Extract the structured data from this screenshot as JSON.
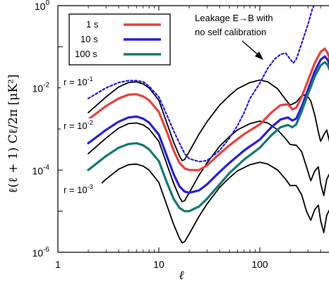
{
  "chart_data": {
    "type": "line",
    "title": "",
    "xlabel": "ℓ",
    "ylabel": "ℓ(ℓ + 1) Cℓ/2π [μK²]",
    "xscale": "log",
    "yscale": "log",
    "xlim": [
      1,
      500
    ],
    "ylim": [
      1e-06,
      1
    ],
    "x_ticks": [
      {
        "value": 1,
        "label": "1"
      },
      {
        "value": 10,
        "label": "10"
      },
      {
        "value": 100,
        "label": "100"
      }
    ],
    "y_ticks": [
      {
        "value": 1,
        "base": "10",
        "exp": "0"
      },
      {
        "value": 0.01,
        "base": "10",
        "exp": "-2"
      },
      {
        "value": 0.0001,
        "base": "10",
        "exp": "-4"
      },
      {
        "value": 1e-06,
        "base": "10",
        "exp": "-6"
      }
    ],
    "grid": false,
    "legend": {
      "placement": "top-left",
      "entries": [
        {
          "label": "1 s",
          "color": "#e8413f"
        },
        {
          "label": "10 s",
          "color": "#2a1fd6"
        },
        {
          "label": "100 s",
          "color": "#157a6e"
        }
      ]
    },
    "series": [
      {
        "name": "r = 10-1",
        "color": "#000000",
        "style": "solid",
        "points": [
          [
            2,
            0.0025
          ],
          [
            3,
            0.006
          ],
          [
            4,
            0.0105
          ],
          [
            5,
            0.0135
          ],
          [
            6,
            0.014
          ],
          [
            7,
            0.0125
          ],
          [
            8,
            0.01
          ],
          [
            10,
            0.005
          ],
          [
            12,
            0.0014
          ],
          [
            14,
            0.00048
          ],
          [
            16,
            0.00022
          ],
          [
            17,
            0.00017
          ],
          [
            18,
            0.00018
          ],
          [
            20,
            0.00028
          ],
          [
            25,
            0.00075
          ],
          [
            30,
            0.0015
          ],
          [
            40,
            0.0038
          ],
          [
            50,
            0.0065
          ],
          [
            60,
            0.0095
          ],
          [
            80,
            0.0135
          ],
          [
            100,
            0.0155
          ],
          [
            120,
            0.014
          ],
          [
            150,
            0.0095
          ],
          [
            180,
            0.0052
          ],
          [
            200,
            0.0038
          ],
          [
            230,
            0.0045
          ],
          [
            260,
            0.0065
          ],
          [
            290,
            0.0068
          ],
          [
            320,
            0.0048
          ],
          [
            350,
            0.0022
          ],
          [
            380,
            0.00085
          ],
          [
            400,
            0.0005
          ],
          [
            430,
            0.00072
          ],
          [
            460,
            0.00094
          ],
          [
            500,
            0.0004
          ]
        ]
      },
      {
        "name": "r = 10-2",
        "color": "#000000",
        "style": "solid",
        "points": [
          [
            2,
            0.00025
          ],
          [
            3,
            0.0006
          ],
          [
            4,
            0.00105
          ],
          [
            5,
            0.00135
          ],
          [
            6,
            0.0014
          ],
          [
            7,
            0.00125
          ],
          [
            8,
            0.001
          ],
          [
            10,
            0.0005
          ],
          [
            12,
            0.00014
          ],
          [
            14,
            4.8e-05
          ],
          [
            16,
            2.2e-05
          ],
          [
            17,
            1.7e-05
          ],
          [
            18,
            1.8e-05
          ],
          [
            20,
            2.8e-05
          ],
          [
            25,
            7.5e-05
          ],
          [
            30,
            0.00015
          ],
          [
            40,
            0.00038
          ],
          [
            50,
            0.00065
          ],
          [
            60,
            0.00095
          ],
          [
            80,
            0.00135
          ],
          [
            100,
            0.00155
          ],
          [
            120,
            0.0014
          ],
          [
            150,
            0.00095
          ],
          [
            180,
            0.00058
          ],
          [
            200,
            0.00042
          ],
          [
            230,
            0.0004
          ],
          [
            260,
            0.00028
          ],
          [
            290,
            0.00012
          ],
          [
            320,
            5.5e-05
          ],
          [
            350,
            9.5e-05
          ],
          [
            380,
            0.00012
          ],
          [
            400,
            4.8e-05
          ],
          [
            430,
            2.4e-05
          ],
          [
            460,
            6e-05
          ],
          [
            500,
            9e-05
          ]
        ]
      },
      {
        "name": "r = 10-3",
        "color": "#000000",
        "style": "solid",
        "points": [
          [
            2,
            2.5e-05
          ],
          [
            3,
            6e-05
          ],
          [
            4,
            0.000105
          ],
          [
            5,
            0.000135
          ],
          [
            6,
            0.00014
          ],
          [
            7,
            0.000125
          ],
          [
            8,
            0.0001
          ],
          [
            10,
            5e-05
          ],
          [
            12,
            1.4e-05
          ],
          [
            14,
            4.8e-06
          ],
          [
            16,
            2.2e-06
          ],
          [
            17,
            1.7e-06
          ],
          [
            18,
            1.8e-06
          ],
          [
            20,
            2.8e-06
          ],
          [
            25,
            7.5e-06
          ],
          [
            30,
            1.5e-05
          ],
          [
            40,
            3.8e-05
          ],
          [
            50,
            6.5e-05
          ],
          [
            60,
            9.5e-05
          ],
          [
            80,
            0.000135
          ],
          [
            100,
            0.000155
          ],
          [
            120,
            0.00014
          ],
          [
            150,
            0.0001
          ],
          [
            180,
            6e-05
          ],
          [
            200,
            4.2e-05
          ],
          [
            230,
            4.2e-05
          ],
          [
            260,
            2.5e-05
          ],
          [
            290,
            1e-05
          ],
          [
            320,
            6e-06
          ],
          [
            350,
            1.1e-05
          ],
          [
            380,
            1.4e-05
          ],
          [
            400,
            6e-06
          ],
          [
            430,
            3e-06
          ],
          [
            460,
            8e-06
          ],
          [
            500,
            1.2e-05
          ]
        ]
      },
      {
        "name": "1 s",
        "color": "#e8413f",
        "style": "solid",
        "points": [
          [
            2,
            0.0017
          ],
          [
            3,
            0.0036
          ],
          [
            4,
            0.0055
          ],
          [
            5,
            0.0068
          ],
          [
            6,
            0.007
          ],
          [
            7,
            0.0062
          ],
          [
            8,
            0.005
          ],
          [
            10,
            0.0026
          ],
          [
            12,
            0.00085
          ],
          [
            14,
            0.0003
          ],
          [
            16,
            0.00015
          ],
          [
            18,
            0.00011
          ],
          [
            20,
            0.0001
          ],
          [
            25,
            0.0001
          ],
          [
            30,
            0.00013
          ],
          [
            40,
            0.00025
          ],
          [
            50,
            0.0004
          ],
          [
            70,
            0.00075
          ],
          [
            100,
            0.0013
          ],
          [
            130,
            0.0025
          ],
          [
            160,
            0.0038
          ],
          [
            190,
            0.004
          ],
          [
            210,
            0.003
          ],
          [
            230,
            0.0033
          ],
          [
            260,
            0.006
          ],
          [
            300,
            0.015
          ],
          [
            350,
            0.04
          ],
          [
            400,
            0.075
          ],
          [
            440,
            0.09
          ],
          [
            470,
            0.07
          ],
          [
            500,
            0.045
          ]
        ]
      },
      {
        "name": "10 s",
        "color": "#2a1fd6",
        "style": "solid",
        "points": [
          [
            2,
            0.00045
          ],
          [
            3,
            0.00095
          ],
          [
            4,
            0.0015
          ],
          [
            5,
            0.0019
          ],
          [
            6,
            0.002
          ],
          [
            7,
            0.00178
          ],
          [
            8,
            0.00143
          ],
          [
            10,
            0.00073
          ],
          [
            12,
            0.00022
          ],
          [
            14,
            8e-05
          ],
          [
            16,
            4e-05
          ],
          [
            18,
            3e-05
          ],
          [
            20,
            2.8e-05
          ],
          [
            25,
            3.2e-05
          ],
          [
            30,
            4.5e-05
          ],
          [
            40,
            9e-05
          ],
          [
            50,
            0.00015
          ],
          [
            70,
            0.0003
          ],
          [
            100,
            0.00055
          ],
          [
            130,
            0.0011
          ],
          [
            160,
            0.0017
          ],
          [
            190,
            0.0019
          ],
          [
            210,
            0.0016
          ],
          [
            230,
            0.0018
          ],
          [
            260,
            0.0035
          ],
          [
            300,
            0.009
          ],
          [
            350,
            0.025
          ],
          [
            400,
            0.048
          ],
          [
            440,
            0.058
          ],
          [
            470,
            0.048
          ],
          [
            500,
            0.032
          ]
        ]
      },
      {
        "name": "100 s",
        "color": "#157a6e",
        "style": "solid",
        "points": [
          [
            2,
            0.0001
          ],
          [
            3,
            0.00022
          ],
          [
            4,
            0.00035
          ],
          [
            5,
            0.00043
          ],
          [
            6,
            0.00045
          ],
          [
            7,
            0.0004
          ],
          [
            8,
            0.00032
          ],
          [
            10,
            0.000165
          ],
          [
            12,
            5e-05
          ],
          [
            14,
            2e-05
          ],
          [
            16,
            1.2e-05
          ],
          [
            18,
            1e-05
          ],
          [
            20,
            1e-05
          ],
          [
            25,
            1.3e-05
          ],
          [
            30,
            2e-05
          ],
          [
            40,
            4.5e-05
          ],
          [
            50,
            8.5e-05
          ],
          [
            70,
            0.00018
          ],
          [
            100,
            0.00035
          ],
          [
            130,
            0.0007
          ],
          [
            160,
            0.0011
          ],
          [
            190,
            0.00125
          ],
          [
            210,
            0.0011
          ],
          [
            230,
            0.0013
          ],
          [
            260,
            0.0027
          ],
          [
            300,
            0.007
          ],
          [
            350,
            0.019
          ],
          [
            400,
            0.035
          ],
          [
            440,
            0.042
          ],
          [
            470,
            0.036
          ],
          [
            500,
            0.025
          ]
        ]
      },
      {
        "name": "Leakage E→B",
        "color": "#2a1fd6",
        "style": "dotted",
        "points": [
          [
            2,
            0.0055
          ],
          [
            3,
            0.01
          ],
          [
            4,
            0.0135
          ],
          [
            5,
            0.015
          ],
          [
            6,
            0.015
          ],
          [
            7,
            0.014
          ],
          [
            8,
            0.011
          ],
          [
            10,
            0.006
          ],
          [
            12,
            0.0022
          ],
          [
            14,
            0.0009
          ],
          [
            16,
            0.00045
          ],
          [
            18,
            0.00025
          ],
          [
            20,
            0.00019
          ],
          [
            25,
            0.00016
          ],
          [
            30,
            0.00017
          ],
          [
            40,
            0.0003
          ],
          [
            50,
            0.0006
          ],
          [
            60,
            0.0012
          ],
          [
            70,
            0.0025
          ],
          [
            80,
            0.0055
          ],
          [
            100,
            0.013
          ],
          [
            120,
            0.03
          ],
          [
            140,
            0.05
          ],
          [
            160,
            0.065
          ],
          [
            180,
            0.07
          ],
          [
            200,
            0.05
          ],
          [
            215,
            0.04
          ],
          [
            230,
            0.05
          ],
          [
            260,
            0.12
          ],
          [
            300,
            0.35
          ],
          [
            330,
            0.8
          ],
          [
            350,
            1.1
          ]
        ]
      }
    ],
    "annotations": [
      {
        "text_line1": "Leakage E→B with",
        "text_line2": "no self calibration"
      },
      {
        "label": "r = 10",
        "exp": "-1"
      },
      {
        "label": "r = 10",
        "exp": "-2"
      },
      {
        "label": "r = 10",
        "exp": "-3"
      }
    ]
  }
}
